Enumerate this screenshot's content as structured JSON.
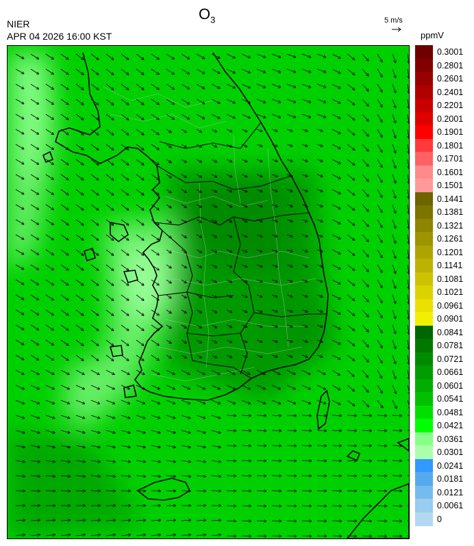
{
  "header": {
    "title": "O",
    "title_sub": "3",
    "agency": "NIER",
    "timestamp": "APR 04 2026 16:00 KST",
    "wind_scale": "5 m/s",
    "unit": "ppmV"
  },
  "colorbar": {
    "labels": [
      "0.3001",
      "0.2801",
      "0.2601",
      "0.2401",
      "0.2201",
      "0.2001",
      "0.1901",
      "0.1801",
      "0.1701",
      "0.1601",
      "0.1501",
      "0.1441",
      "0.1381",
      "0.1321",
      "0.1261",
      "0.1201",
      "0.1141",
      "0.1081",
      "0.1021",
      "0.0961",
      "0.0901",
      "0.0841",
      "0.0781",
      "0.0721",
      "0.0661",
      "0.0601",
      "0.0541",
      "0.0481",
      "0.0421",
      "0.0361",
      "0.0301",
      "0.0241",
      "0.0181",
      "0.0121",
      "0.0061",
      "0"
    ],
    "colors": [
      "#6e0000",
      "#830000",
      "#990000",
      "#b00000",
      "#c80000",
      "#e00000",
      "#ff0000",
      "#ff3a3a",
      "#ff6262",
      "#ff8a8a",
      "#ff9a9a",
      "#6e6400",
      "#7e7400",
      "#8e8400",
      "#9e9400",
      "#aea400",
      "#bcb200",
      "#ccc200",
      "#dcd200",
      "#ece000",
      "#f0f000",
      "#006600",
      "#007800",
      "#008a00",
      "#009c00",
      "#00ae00",
      "#00c000",
      "#00e000",
      "#00ff00",
      "#88ff88",
      "#aaffaa",
      "#3399ff",
      "#55aaee",
      "#77bbee",
      "#99ccee",
      "#b3d9f2"
    ]
  }
}
